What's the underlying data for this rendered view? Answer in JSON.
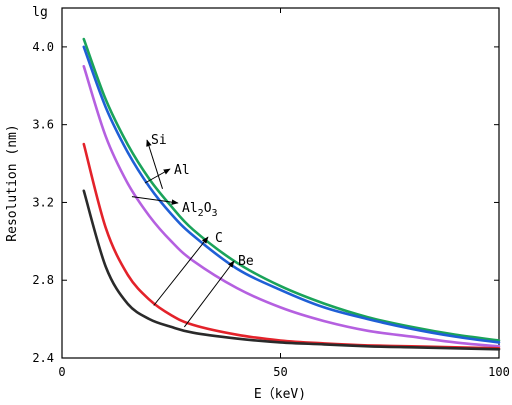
{
  "chart_data": {
    "type": "line",
    "corner_label": "lg",
    "xlabel": "E（keV)",
    "ylabel": "Resolution (nm)",
    "xlim": [
      0,
      100
    ],
    "ylim": [
      2.4,
      4.2
    ],
    "x_ticks": [
      "0",
      "50",
      "100"
    ],
    "y_ticks": [
      "2.4",
      "2.8",
      "3.2",
      "3.6",
      "4.0"
    ],
    "x_tick_values": [
      0,
      50,
      100
    ],
    "y_tick_values": [
      2.4,
      2.8,
      3.2,
      3.6,
      4.0
    ],
    "grid": false,
    "legend": "none",
    "series": [
      {
        "name": "Si",
        "color": "#1aa35a",
        "x": [
          5,
          10,
          15,
          20,
          25,
          30,
          40,
          50,
          60,
          70,
          80,
          90,
          100
        ],
        "y": [
          4.04,
          3.73,
          3.5,
          3.32,
          3.18,
          3.06,
          2.89,
          2.77,
          2.68,
          2.61,
          2.56,
          2.52,
          2.49
        ]
      },
      {
        "name": "Al",
        "color": "#1f5fd6",
        "x": [
          5,
          10,
          15,
          20,
          25,
          30,
          40,
          50,
          60,
          70,
          80,
          90,
          100
        ],
        "y": [
          4.0,
          3.69,
          3.46,
          3.28,
          3.14,
          3.03,
          2.86,
          2.75,
          2.66,
          2.6,
          2.55,
          2.51,
          2.48
        ]
      },
      {
        "name": "Al2O3",
        "color": "#b560e0",
        "x": [
          5,
          10,
          15,
          20,
          25,
          30,
          40,
          50,
          60,
          70,
          80,
          90,
          100
        ],
        "y": [
          3.9,
          3.54,
          3.3,
          3.13,
          3.0,
          2.9,
          2.76,
          2.66,
          2.59,
          2.54,
          2.51,
          2.48,
          2.46
        ]
      },
      {
        "name": "C",
        "color": "#e3222a",
        "x": [
          5,
          10,
          15,
          20,
          25,
          30,
          40,
          50,
          60,
          70,
          80,
          90,
          100
        ],
        "y": [
          3.5,
          3.07,
          2.83,
          2.7,
          2.62,
          2.57,
          2.52,
          2.49,
          2.475,
          2.465,
          2.46,
          2.455,
          2.45
        ]
      },
      {
        "name": "Be",
        "color": "#2a2a2a",
        "x": [
          5,
          10,
          15,
          20,
          25,
          30,
          40,
          50,
          60,
          70,
          80,
          90,
          100
        ],
        "y": [
          3.26,
          2.87,
          2.68,
          2.6,
          2.56,
          2.53,
          2.5,
          2.48,
          2.47,
          2.46,
          2.455,
          2.45,
          2.445
        ]
      }
    ],
    "annotations": [
      {
        "text": "Si",
        "subscript": "",
        "suffix": "",
        "target_x": 23,
        "target_y": 3.27
      },
      {
        "text": "Al",
        "subscript": "",
        "suffix": "",
        "target_x": 19,
        "target_y": 3.3
      },
      {
        "text": "Al",
        "subscript": "2",
        "suffix": "O",
        "subscript2": "3",
        "target_x": 16,
        "target_y": 3.23
      },
      {
        "text": "C",
        "subscript": "",
        "suffix": "",
        "target_x": 21,
        "target_y": 2.67
      },
      {
        "text": "Be",
        "subscript": "",
        "suffix": "",
        "target_x": 28,
        "target_y": 2.56
      }
    ]
  }
}
